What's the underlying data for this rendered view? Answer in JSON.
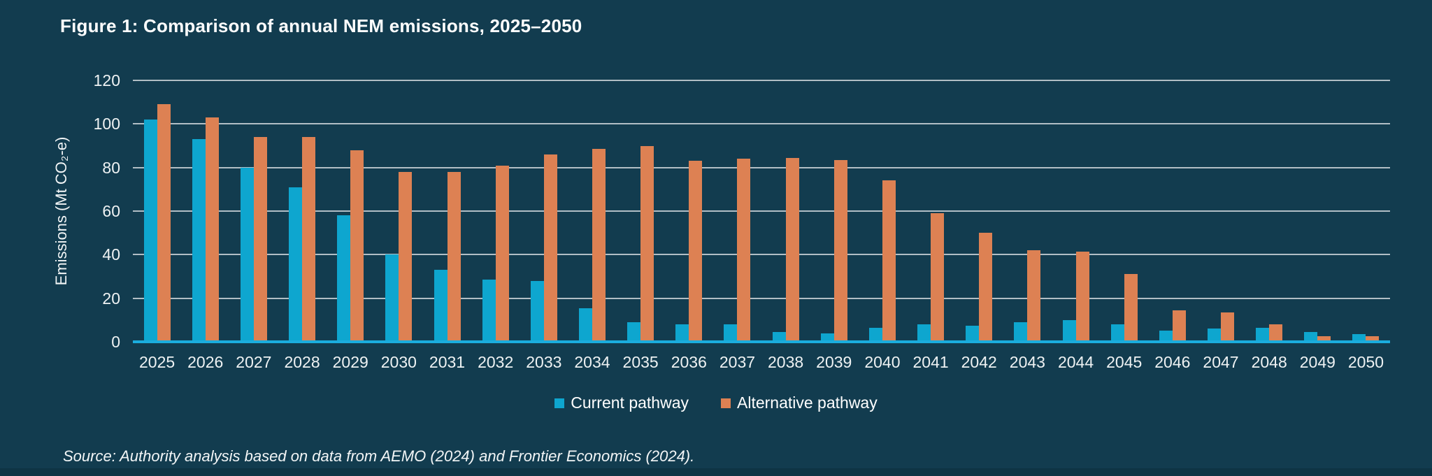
{
  "figure": {
    "title": "Figure 1: Comparison of annual NEM emissions, 2025–2050",
    "source": "Source: Authority analysis based on data from AEMO (2024) and Frontier Economics (2024)."
  },
  "colors": {
    "background": "#123c4f",
    "bottom_strip": "#0e3444",
    "current": "#0ea6cf",
    "alternative": "#dd8153",
    "gridline": "#c3ccd1",
    "axis_line": "#1badde",
    "text": "#ffffff"
  },
  "chart_data": {
    "type": "bar",
    "title": "Figure 1: Comparison of annual NEM emissions, 2025–2050",
    "xlabel": "",
    "ylabel": "Emissions (Mt CO₂-e)",
    "ylim": [
      0,
      120
    ],
    "yticks": [
      0,
      20,
      40,
      60,
      80,
      100,
      120
    ],
    "grid": true,
    "legend_position": "bottom",
    "categories": [
      "2025",
      "2026",
      "2027",
      "2028",
      "2029",
      "2030",
      "2031",
      "2032",
      "2033",
      "2034",
      "2035",
      "2036",
      "2037",
      "2038",
      "2039",
      "2040",
      "2041",
      "2042",
      "2043",
      "2044",
      "2045",
      "2046",
      "2047",
      "2048",
      "2049",
      "2050"
    ],
    "series": [
      {
        "name": "Current pathway",
        "color_key": "current",
        "values": [
          102,
          93,
          80,
          71,
          58,
          40,
          33,
          28.5,
          28,
          15.5,
          9,
          8,
          8,
          4.5,
          4,
          6.5,
          8,
          7.5,
          9,
          10,
          8,
          5,
          6,
          6.5,
          4.5,
          3.5
        ]
      },
      {
        "name": "Alternative pathway",
        "color_key": "alternative",
        "values": [
          109,
          103,
          94,
          94,
          88,
          78,
          78,
          81,
          86,
          88.5,
          90,
          83,
          84,
          84.5,
          83.5,
          74,
          59,
          50,
          42,
          41.5,
          31,
          14.5,
          13.5,
          8,
          2.5,
          2.5
        ]
      }
    ]
  }
}
